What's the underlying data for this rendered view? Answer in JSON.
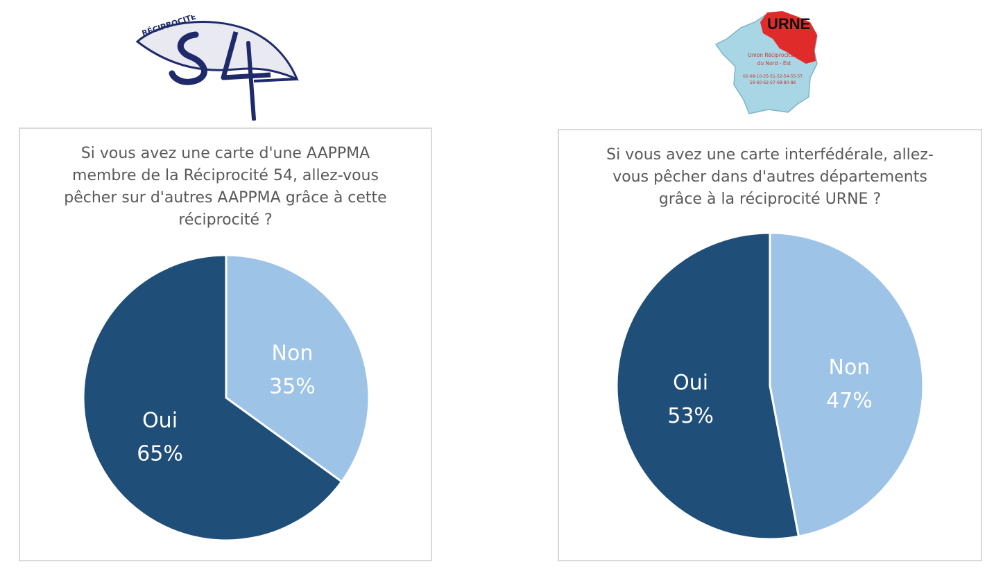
{
  "logos": {
    "left": {
      "icon": "reciprocite-54-fish-logo",
      "text": "RÉCIPROCITÉ",
      "numeral": "54"
    },
    "right": {
      "icon": "urne-france-map-logo",
      "title": "URNE",
      "line1": "Union Réciprocitaire",
      "line2": "du Nord - Est",
      "codes1": "02-08-10-25-51-52-54-55-57",
      "codes2": "59-60-62-67-68-80-88"
    }
  },
  "colors": {
    "oui": "#1f4e79",
    "non": "#9dc3e6",
    "border": "#d9d9d9",
    "title_text": "#595959"
  },
  "chart_data": [
    {
      "type": "pie",
      "title": "Si vous avez une carte d'une AAPPMA membre de la Réciprocité 54, allez-vous pêcher sur d'autres AAPPMA grâce à cette réciprocité ?",
      "start_angle_deg": 0,
      "slices": [
        {
          "label": "Non",
          "value": 35,
          "value_label": "35%",
          "color": "#9dc3e6"
        },
        {
          "label": "Oui",
          "value": 65,
          "value_label": "65%",
          "color": "#1f4e79"
        }
      ]
    },
    {
      "type": "pie",
      "title": "Si vous avez une carte interfédérale, allez-vous pêcher dans d'autres départements grâce à la réciprocité URNE ?",
      "start_angle_deg": 0,
      "slices": [
        {
          "label": "Non",
          "value": 47,
          "value_label": "47%",
          "color": "#9dc3e6"
        },
        {
          "label": "Oui",
          "value": 53,
          "value_label": "53%",
          "color": "#1f4e79"
        }
      ]
    }
  ]
}
